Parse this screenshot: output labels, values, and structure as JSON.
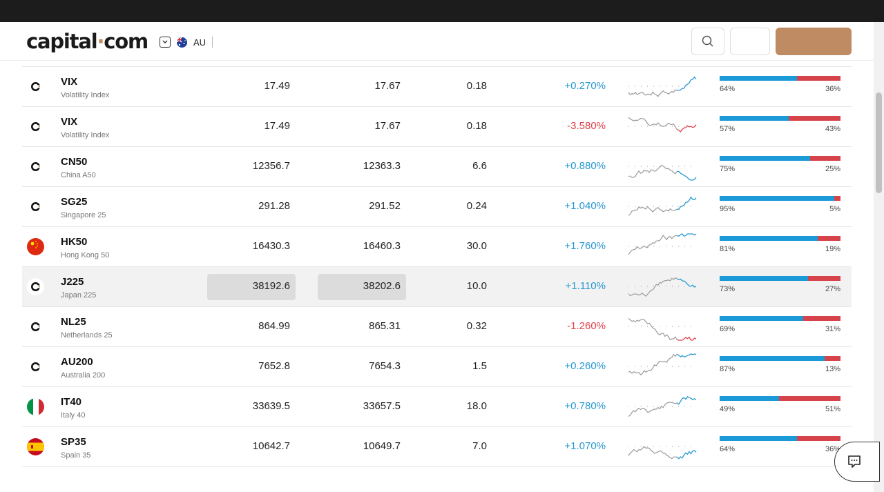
{
  "header": {
    "logo_left": "capital",
    "logo_dot": "·",
    "logo_right": "com",
    "region": "AU"
  },
  "colors": {
    "accent": "#bf8b63",
    "positive": "#2698d1",
    "negative": "#e0424a",
    "buy_bar": "#1a9ad6",
    "sell_bar": "#d6434a"
  },
  "rows": [
    {
      "symbol": "VIX",
      "name": "Volatility Index",
      "sell": "17.49",
      "buy": "17.67",
      "spread": "0.18",
      "change": "+0.270%",
      "dir": "pos",
      "buy_pct": 64,
      "buy_label": "64%",
      "sell_label": "36%",
      "icon": "capital-icon"
    },
    {
      "symbol": "VIX",
      "name": "Volatility Index",
      "sell": "17.49",
      "buy": "17.67",
      "spread": "0.18",
      "change": "-3.580%",
      "dir": "neg",
      "buy_pct": 57,
      "buy_label": "57%",
      "sell_label": "43%",
      "icon": "capital-icon"
    },
    {
      "symbol": "CN50",
      "name": "China A50",
      "sell": "12356.7",
      "buy": "12363.3",
      "spread": "6.6",
      "change": "+0.880%",
      "dir": "pos",
      "buy_pct": 75,
      "buy_label": "75%",
      "sell_label": "25%",
      "icon": "capital-icon"
    },
    {
      "symbol": "SG25",
      "name": "Singapore 25",
      "sell": "291.28",
      "buy": "291.52",
      "spread": "0.24",
      "change": "+1.040%",
      "dir": "pos",
      "buy_pct": 95,
      "buy_label": "95%",
      "sell_label": "5%",
      "icon": "capital-icon"
    },
    {
      "symbol": "HK50",
      "name": "Hong Kong 50",
      "sell": "16430.3",
      "buy": "16460.3",
      "spread": "30.0",
      "change": "+1.760%",
      "dir": "pos",
      "buy_pct": 81,
      "buy_label": "81%",
      "sell_label": "19%",
      "icon": "hong-kong-flag-icon"
    },
    {
      "symbol": "J225",
      "name": "Japan 225",
      "sell": "38192.6",
      "buy": "38202.6",
      "spread": "10.0",
      "change": "+1.110%",
      "dir": "pos",
      "buy_pct": 73,
      "buy_label": "73%",
      "sell_label": "27%",
      "icon": "capital-icon",
      "highlight": true
    },
    {
      "symbol": "NL25",
      "name": "Netherlands 25",
      "sell": "864.99",
      "buy": "865.31",
      "spread": "0.32",
      "change": "-1.260%",
      "dir": "neg",
      "buy_pct": 69,
      "buy_label": "69%",
      "sell_label": "31%",
      "icon": "capital-icon"
    },
    {
      "symbol": "AU200",
      "name": "Australia 200",
      "sell": "7652.8",
      "buy": "7654.3",
      "spread": "1.5",
      "change": "+0.260%",
      "dir": "pos",
      "buy_pct": 87,
      "buy_label": "87%",
      "sell_label": "13%",
      "icon": "capital-icon"
    },
    {
      "symbol": "IT40",
      "name": "Italy 40",
      "sell": "33639.5",
      "buy": "33657.5",
      "spread": "18.0",
      "change": "+0.780%",
      "dir": "pos",
      "buy_pct": 49,
      "buy_label": "49%",
      "sell_label": "51%",
      "icon": "italy-flag-icon"
    },
    {
      "symbol": "SP35",
      "name": "Spain 35",
      "sell": "10642.7",
      "buy": "10649.7",
      "spread": "7.0",
      "change": "+1.070%",
      "dir": "pos",
      "buy_pct": 64,
      "buy_label": "64%",
      "sell_label": "36%",
      "icon": "spain-flag-icon"
    }
  ]
}
